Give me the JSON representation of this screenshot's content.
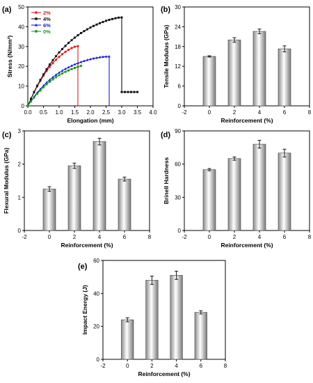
{
  "chart_data": [
    {
      "panel": "(a)",
      "type": "line",
      "xlabel": "Elongation (mm)",
      "ylabel": "Stress (N/mm²)",
      "xlim": [
        0,
        4
      ],
      "ylim": [
        0,
        50
      ],
      "xticks": [
        "0.0",
        "0.5",
        "1.0",
        "1.5",
        "2.0",
        "2.5",
        "3.0",
        "3.5",
        "4.0"
      ],
      "yticks": [
        "0",
        "10",
        "20",
        "30",
        "40",
        "50"
      ],
      "legend_position": "top-left",
      "series": [
        {
          "name": "2%",
          "color": "#e01b1b",
          "marker": "circle",
          "x": [
            0,
            0.1,
            0.2,
            0.3,
            0.4,
            0.5,
            0.6,
            0.7,
            0.8,
            0.9,
            1.0,
            1.1,
            1.2,
            1.3,
            1.4,
            1.5,
            1.6
          ],
          "y": [
            0,
            3.5,
            6.8,
            9.8,
            12.6,
            15.2,
            17.6,
            19.7,
            21.6,
            23.3,
            24.8,
            26.1,
            27.3,
            28.3,
            29.2,
            29.9,
            30.2
          ],
          "drop": {
            "x": 1.6,
            "y": [
              30.2,
              0
            ]
          }
        },
        {
          "name": "4%",
          "color": "#111111",
          "marker": "square",
          "x": [
            0,
            0.1,
            0.2,
            0.3,
            0.4,
            0.5,
            0.6,
            0.7,
            0.8,
            0.9,
            1.0,
            1.1,
            1.2,
            1.3,
            1.4,
            1.5,
            1.6,
            1.7,
            1.8,
            1.9,
            2.0,
            2.1,
            2.2,
            2.3,
            2.4,
            2.5,
            2.6,
            2.7,
            2.8,
            2.9,
            3.0
          ],
          "y": [
            0,
            3.6,
            7.0,
            10.2,
            13.1,
            15.9,
            18.5,
            20.9,
            23.1,
            25.1,
            27.0,
            28.7,
            30.3,
            31.8,
            33.2,
            34.5,
            35.7,
            36.8,
            37.8,
            38.7,
            39.6,
            40.4,
            41.1,
            41.8,
            42.4,
            43.0,
            43.5,
            43.9,
            44.3,
            44.6,
            44.7
          ],
          "drop": {
            "x": 3.0,
            "y": [
              44.7,
              7
            ]
          },
          "tail": {
            "x": [
              3.0,
              3.1,
              3.2,
              3.3,
              3.4,
              3.5
            ],
            "y": [
              7,
              7,
              7,
              7,
              7,
              7
            ]
          }
        },
        {
          "name": "6%",
          "color": "#1a1ae0",
          "marker": "triangle",
          "x": [
            0,
            0.1,
            0.2,
            0.3,
            0.4,
            0.5,
            0.6,
            0.7,
            0.8,
            0.9,
            1.0,
            1.1,
            1.2,
            1.3,
            1.4,
            1.5,
            1.6,
            1.7,
            1.8,
            1.9,
            2.0,
            2.1,
            2.2,
            2.3,
            2.4,
            2.5,
            2.6
          ],
          "y": [
            0,
            2.4,
            4.6,
            6.6,
            8.5,
            10.2,
            11.8,
            13.2,
            14.5,
            15.7,
            16.8,
            17.8,
            18.7,
            19.5,
            20.3,
            21.0,
            21.6,
            22.2,
            22.7,
            23.2,
            23.6,
            24.0,
            24.3,
            24.6,
            24.8,
            24.9,
            25.0
          ],
          "drop": {
            "x": 2.6,
            "y": [
              25.0,
              0
            ]
          }
        },
        {
          "name": "0%",
          "color": "#1a9a1a",
          "marker": "square",
          "x": [
            0,
            0.1,
            0.2,
            0.3,
            0.4,
            0.5,
            0.6,
            0.7,
            0.8,
            0.9,
            1.0,
            1.1,
            1.2,
            1.3,
            1.4,
            1.5,
            1.6,
            1.7
          ],
          "y": [
            0,
            2.2,
            4.2,
            6.1,
            7.8,
            9.4,
            10.9,
            12.2,
            13.4,
            14.5,
            15.5,
            16.4,
            17.2,
            17.9,
            18.6,
            19.2,
            19.7,
            20.2
          ]
        }
      ]
    },
    {
      "panel": "(b)",
      "type": "bar",
      "xlabel": "Reinforcement (%)",
      "ylabel": "Tensile Modulus (GPa)",
      "xlim": [
        -2,
        8
      ],
      "ylim": [
        0,
        30
      ],
      "xticks": [
        "-2",
        "0",
        "2",
        "4",
        "6",
        "8"
      ],
      "yticks": [
        "0",
        "6",
        "12",
        "18",
        "24",
        "30"
      ],
      "x": [
        0,
        2,
        4,
        6
      ],
      "values": [
        15.0,
        20.0,
        22.6,
        17.3
      ],
      "errors": [
        0.2,
        0.7,
        0.7,
        0.9
      ]
    },
    {
      "panel": "(c)",
      "type": "bar",
      "xlabel": "Reinforcement (%)",
      "ylabel": "Flexural Modulus (GPa)",
      "xlim": [
        -2,
        8
      ],
      "ylim": [
        0,
        3
      ],
      "xticks": [
        "-2",
        "0",
        "2",
        "4",
        "6",
        "8"
      ],
      "yticks": [
        "0",
        "1",
        "2",
        "3"
      ],
      "x": [
        0,
        2,
        4,
        6
      ],
      "values": [
        1.25,
        1.95,
        2.68,
        1.55
      ],
      "errors": [
        0.07,
        0.08,
        0.1,
        0.06
      ]
    },
    {
      "panel": "(d)",
      "type": "bar",
      "xlabel": "Reinforcement (%)",
      "ylabel": "Brinell Hardness",
      "xlim": [
        -2,
        8
      ],
      "ylim": [
        0,
        90
      ],
      "xticks": [
        "-2",
        "0",
        "2",
        "4",
        "6",
        "8"
      ],
      "yticks": [
        "0",
        "30",
        "60",
        "90"
      ],
      "x": [
        0,
        2,
        4,
        6
      ],
      "values": [
        55,
        65,
        78,
        70
      ],
      "errors": [
        1,
        1.5,
        3.5,
        3.5
      ]
    },
    {
      "panel": "(e)",
      "type": "bar",
      "xlabel": "Reinforcement (%)",
      "ylabel": "Impact Energy (J)",
      "xlim": [
        -2,
        8
      ],
      "ylim": [
        0,
        60
      ],
      "xticks": [
        "-2",
        "0",
        "2",
        "4",
        "6",
        "8"
      ],
      "yticks": [
        "0",
        "20",
        "40",
        "60"
      ],
      "x": [
        0,
        2,
        4,
        6
      ],
      "values": [
        24,
        48,
        51,
        28.5
      ],
      "errors": [
        1.2,
        2.5,
        2.5,
        1
      ]
    }
  ]
}
